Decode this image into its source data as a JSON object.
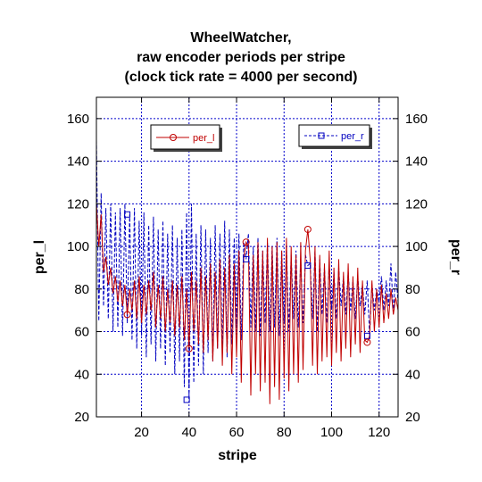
{
  "chart_data": {
    "type": "line",
    "title": [
      "WheelWatcher,",
      "raw encoder periods per stripe",
      "(clock tick rate = 4000 per second)"
    ],
    "xlabel": "stripe",
    "ylabel_left": "per_l",
    "ylabel_right": "per_r",
    "xlim": [
      1,
      128
    ],
    "ylim": [
      20,
      170
    ],
    "yticks": [
      20,
      40,
      60,
      80,
      100,
      120,
      140,
      160
    ],
    "xticks": [
      20,
      40,
      60,
      80,
      100,
      120
    ],
    "grid": true,
    "legend_placement": "top",
    "series": [
      {
        "name": "per_l",
        "color": "#c00000",
        "line_style": "solid",
        "marker": "circle",
        "marker_x": [
          14,
          40,
          64,
          90,
          115
        ],
        "marker_y": [
          68,
          52,
          102,
          108,
          55
        ],
        "x": [
          1,
          2,
          3,
          4,
          5,
          6,
          7,
          8,
          9,
          10,
          11,
          12,
          13,
          14,
          15,
          16,
          17,
          18,
          19,
          20,
          21,
          22,
          23,
          24,
          25,
          26,
          27,
          28,
          29,
          30,
          31,
          32,
          33,
          34,
          35,
          36,
          37,
          38,
          39,
          40,
          41,
          42,
          43,
          44,
          45,
          46,
          47,
          48,
          49,
          50,
          51,
          52,
          53,
          54,
          55,
          56,
          57,
          58,
          59,
          60,
          61,
          62,
          63,
          64,
          65,
          66,
          67,
          68,
          69,
          70,
          71,
          72,
          73,
          74,
          75,
          76,
          77,
          78,
          79,
          80,
          81,
          82,
          83,
          84,
          85,
          86,
          87,
          88,
          89,
          90,
          91,
          92,
          93,
          94,
          95,
          96,
          97,
          98,
          99,
          100,
          101,
          102,
          103,
          104,
          105,
          106,
          107,
          108,
          109,
          110,
          111,
          112,
          113,
          114,
          115,
          116,
          117,
          118,
          119,
          120,
          121,
          122,
          123,
          124,
          125,
          126,
          127,
          128
        ],
        "y": [
          120,
          100,
          115,
          88,
          95,
          82,
          90,
          78,
          86,
          74,
          84,
          72,
          82,
          68,
          80,
          70,
          84,
          66,
          86,
          64,
          82,
          68,
          84,
          70,
          88,
          62,
          82,
          66,
          86,
          60,
          80,
          64,
          84,
          58,
          82,
          62,
          86,
          56,
          80,
          52,
          88,
          60,
          84,
          54,
          90,
          50,
          86,
          56,
          92,
          46,
          88,
          52,
          94,
          44,
          90,
          50,
          96,
          40,
          92,
          48,
          98,
          36,
          94,
          102,
          100,
          30,
          96,
          40,
          102,
          32,
          98,
          36,
          104,
          26,
          100,
          34,
          102,
          28,
          98,
          38,
          104,
          32,
          100,
          40,
          96,
          36,
          102,
          42,
          98,
          108,
          94,
          44,
          100,
          40,
          96,
          46,
          92,
          48,
          98,
          44,
          90,
          50,
          94,
          46,
          88,
          52,
          92,
          48,
          86,
          54,
          90,
          50,
          84,
          56,
          55,
          58,
          84,
          60,
          80,
          62,
          82,
          64,
          78,
          66,
          80,
          68,
          76,
          70
        ]
      },
      {
        "name": "per_r",
        "color": "#0000c0",
        "line_style": "dashed",
        "marker": "square",
        "marker_x": [
          14,
          39,
          64,
          90,
          115
        ],
        "marker_y": [
          115,
          28,
          94,
          91,
          58
        ],
        "x": [
          1,
          2,
          3,
          4,
          5,
          6,
          7,
          8,
          9,
          10,
          11,
          12,
          13,
          14,
          15,
          16,
          17,
          18,
          19,
          20,
          21,
          22,
          23,
          24,
          25,
          26,
          27,
          28,
          29,
          30,
          31,
          32,
          33,
          34,
          35,
          36,
          37,
          38,
          39,
          40,
          41,
          42,
          43,
          44,
          45,
          46,
          47,
          48,
          49,
          50,
          51,
          52,
          53,
          54,
          55,
          56,
          57,
          58,
          59,
          60,
          61,
          62,
          63,
          64,
          65,
          66,
          67,
          68,
          69,
          70,
          71,
          72,
          73,
          74,
          75,
          76,
          77,
          78,
          79,
          80,
          81,
          82,
          83,
          84,
          85,
          86,
          87,
          88,
          89,
          90,
          91,
          92,
          93,
          94,
          95,
          96,
          97,
          98,
          99,
          100,
          101,
          102,
          103,
          104,
          105,
          106,
          107,
          108,
          109,
          110,
          111,
          112,
          113,
          114,
          115,
          116,
          117,
          118,
          119,
          120,
          121,
          122,
          123,
          124,
          125,
          126,
          127,
          128
        ],
        "y": [
          150,
          65,
          125,
          72,
          118,
          66,
          120,
          60,
          116,
          62,
          118,
          58,
          120,
          64,
          115,
          56,
          118,
          52,
          112,
          58,
          116,
          48,
          110,
          54,
          114,
          46,
          108,
          52,
          112,
          44,
          106,
          50,
          110,
          40,
          104,
          46,
          108,
          34,
          116,
          28,
          120,
          36,
          106,
          44,
          110,
          40,
          108,
          50,
          104,
          46,
          110,
          52,
          106,
          50,
          112,
          48,
          108,
          54,
          104,
          60,
          106,
          56,
          102,
          94,
          106,
          62,
          100,
          60,
          104,
          58,
          98,
          64,
          102,
          60,
          100,
          62,
          104,
          58,
          98,
          64,
          100,
          60,
          96,
          66,
          98,
          62,
          94,
          64,
          96,
          91,
          92,
          66,
          98,
          60,
          94,
          68,
          90,
          64,
          92,
          70,
          88,
          66,
          90,
          72,
          86,
          68,
          88,
          70,
          84,
          66,
          86,
          72,
          82,
          68,
          84,
          58,
          82,
          70,
          80,
          74,
          86,
          70,
          84,
          72,
          92,
          68,
          88,
          74
        ]
      }
    ]
  }
}
